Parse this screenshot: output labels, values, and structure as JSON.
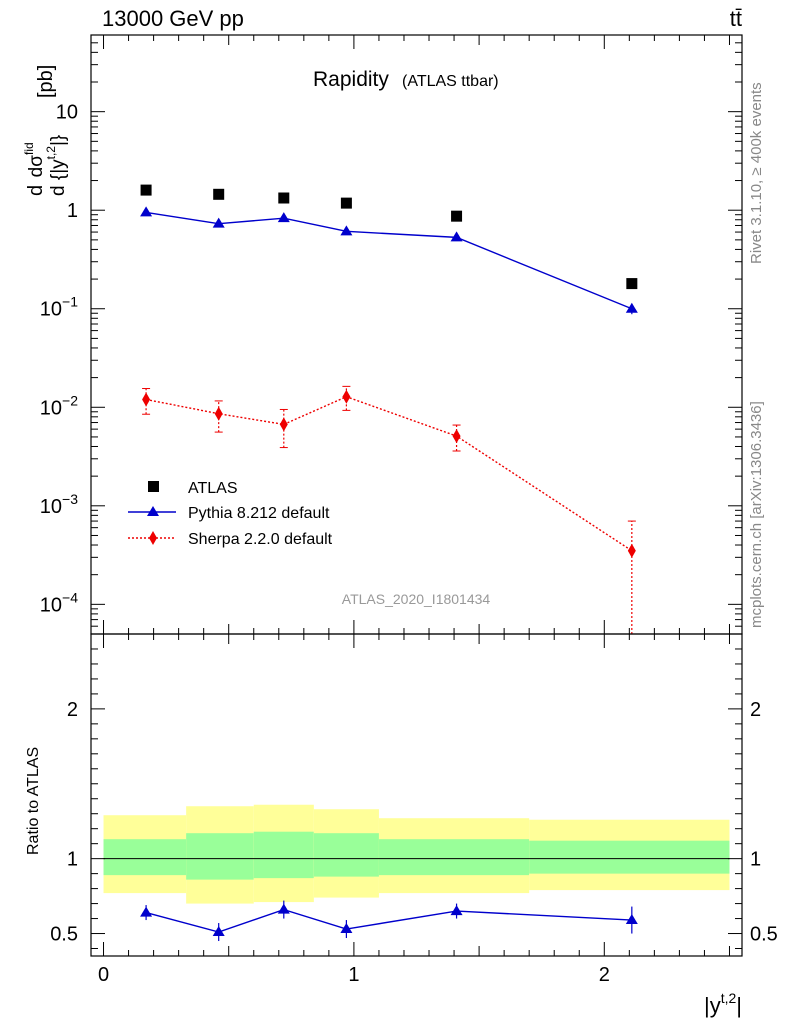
{
  "header": {
    "energy_label": "13000 GeV pp",
    "process_label": "tt̄"
  },
  "side_labels": {
    "rivet": "Rivet 3.1.10, ≥ 400k events",
    "mcplots": "mcplots.cern.ch [arXiv:1306.3436]"
  },
  "chart_data": [
    {
      "type": "scatter",
      "panel": "main",
      "title": "Rapidity",
      "subtitle": "(ATLAS ttbar)",
      "analysis_id": "ATLAS_2020_I1801434",
      "ylabel": "d dσ^{fid} / d {|y^{t,2}|} [pb]",
      "yscale": "log",
      "ylim": [
        5e-05,
        60
      ],
      "xlim": [
        -0.05,
        2.55
      ],
      "y_tick_labels": [
        "10",
        "1",
        "10−1",
        "10−2",
        "10−3",
        "10−4"
      ],
      "legend_position": "bottom-left",
      "x_centers": [
        0.17,
        0.46,
        0.72,
        0.97,
        1.41,
        2.11
      ],
      "x_bin_edges": [
        0.0,
        0.33,
        0.6,
        0.84,
        1.1,
        1.7,
        2.5
      ],
      "series": [
        {
          "name": "ATLAS",
          "color": "#000000",
          "marker": "square",
          "line": "none",
          "values": [
            1.6,
            1.45,
            1.33,
            1.18,
            0.87,
            0.18
          ]
        },
        {
          "name": "Pythia 8.212 default",
          "color": "#0000cc",
          "marker": "triangle",
          "line": "solid",
          "values": [
            0.95,
            0.73,
            0.83,
            0.61,
            0.53,
            0.1
          ],
          "err_low": [
            0.03,
            0.03,
            0.03,
            0.03,
            0.03,
            0.012
          ],
          "err_high": [
            0.03,
            0.03,
            0.03,
            0.03,
            0.03,
            0.012
          ]
        },
        {
          "name": "Sherpa 2.2.0 default",
          "color": "#ee0000",
          "marker": "diamond",
          "line": "dotted",
          "values": [
            0.012,
            0.0086,
            0.0067,
            0.0128,
            0.0051,
            0.00035
          ],
          "err_low": [
            0.0035,
            0.003,
            0.0028,
            0.0035,
            0.0015,
            0.00034
          ],
          "err_high": [
            0.0035,
            0.003,
            0.0028,
            0.0035,
            0.0015,
            0.00035
          ]
        }
      ]
    },
    {
      "type": "line",
      "panel": "ratio",
      "ylabel": "Ratio to ATLAS",
      "xlabel": "|y^{t,2}|",
      "ylim": [
        0.35,
        2.5
      ],
      "xlim": [
        -0.05,
        2.55
      ],
      "x_tick_labels": [
        "0",
        "1",
        "2"
      ],
      "y_tick_labels": [
        "0.5",
        "1",
        "2"
      ],
      "x_bin_edges": [
        0.0,
        0.33,
        0.6,
        0.84,
        1.1,
        1.7,
        2.5
      ],
      "bands": {
        "outer_color": "#ffff99",
        "inner_color": "#99ff99",
        "outer_low": [
          0.77,
          0.7,
          0.71,
          0.74,
          0.77,
          0.79
        ],
        "outer_high": [
          1.29,
          1.35,
          1.36,
          1.33,
          1.27,
          1.26
        ],
        "inner_low": [
          0.89,
          0.86,
          0.87,
          0.88,
          0.89,
          0.9
        ],
        "inner_high": [
          1.13,
          1.17,
          1.18,
          1.17,
          1.13,
          1.12
        ]
      },
      "reference_line": 1,
      "x_centers": [
        0.17,
        0.46,
        0.72,
        0.97,
        1.41,
        2.11
      ],
      "series": [
        {
          "name": "Pythia 8.212 default",
          "color": "#0000cc",
          "values": [
            0.64,
            0.51,
            0.66,
            0.53,
            0.65,
            0.59
          ],
          "err_low": [
            0.05,
            0.06,
            0.06,
            0.06,
            0.05,
            0.09
          ],
          "err_high": [
            0.05,
            0.06,
            0.06,
            0.06,
            0.05,
            0.09
          ]
        }
      ]
    }
  ]
}
